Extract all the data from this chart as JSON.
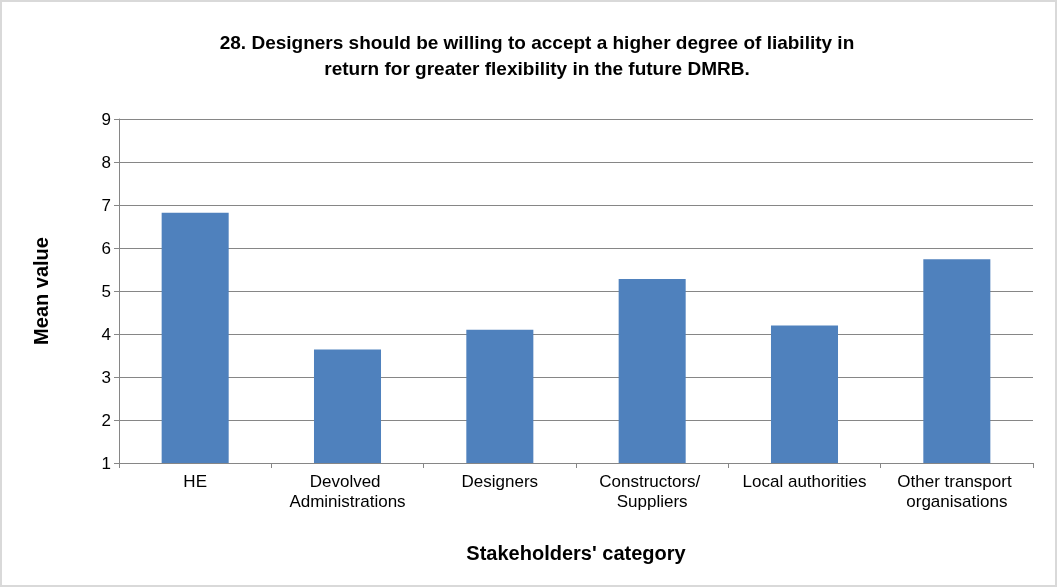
{
  "chart_data": {
    "type": "bar",
    "title": "28. Designers should be willing to accept a higher degree of liability in\nreturn for greater flexibility in the future DMRB.",
    "xlabel": "Stakeholders' category",
    "ylabel": "Mean value",
    "categories": [
      "HE",
      "Devolved Administrations",
      "Designers",
      "Constructors/ Suppliers",
      "Local authorities",
      "Other transport organisations"
    ],
    "values": [
      6.82,
      3.64,
      4.1,
      5.28,
      4.2,
      5.74
    ],
    "color": "#4f81bd",
    "ylim": [
      1,
      9
    ],
    "yticks": [
      1,
      2,
      3,
      4,
      5,
      6,
      7,
      8,
      9
    ],
    "grid": "y"
  }
}
